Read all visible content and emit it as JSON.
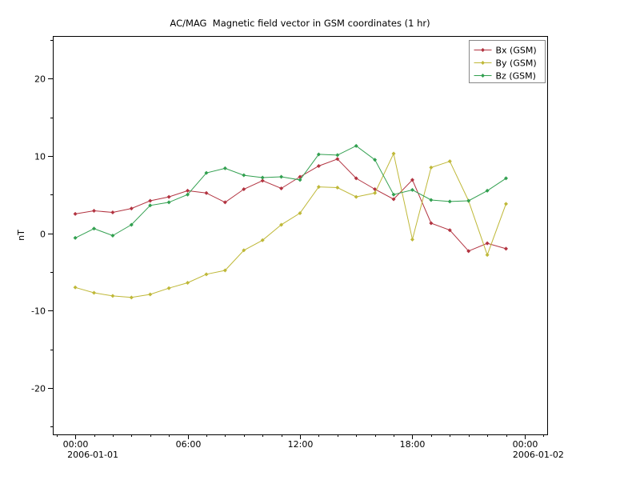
{
  "figure": {
    "background": "#ffffff"
  },
  "chart_data": {
    "type": "line",
    "title": "AC/MAG  Magnetic field vector in GSM coordinates (1 hr)",
    "xlabel": "",
    "ylabel": "nT",
    "x_unit": "hour of 2006-01-01",
    "grid": false,
    "legend_position": "top-right",
    "xlim": [
      -1.2,
      25.2
    ],
    "ylim": [
      -26,
      25.5
    ],
    "x_ticks": [
      0,
      6,
      12,
      18,
      24
    ],
    "x_tick_labels": [
      "00:00",
      "06:00",
      "12:00",
      "18:00",
      "00:00"
    ],
    "x_minor_step": 1,
    "y_ticks": [
      20,
      10,
      0,
      -10,
      -20
    ],
    "y_tick_labels": [
      "20",
      "10",
      "0",
      "-10",
      "-20"
    ],
    "y_minor_step": 5,
    "x_date_labels": [
      {
        "pos": 0,
        "label": "2006-01-01"
      },
      {
        "pos": 24,
        "label": "2006-01-02"
      }
    ],
    "x": [
      0,
      1,
      2,
      3,
      4,
      5,
      6,
      7,
      8,
      9,
      10,
      11,
      12,
      13,
      14,
      15,
      16,
      17,
      18,
      19,
      20,
      21,
      22,
      23
    ],
    "series": [
      {
        "id": "bx",
        "name": "Bx (GSM)",
        "color": "#b23340",
        "marker": "diamond",
        "values": [
          2.5,
          2.9,
          2.7,
          3.2,
          4.2,
          4.7,
          5.5,
          5.2,
          4.0,
          5.7,
          6.8,
          5.8,
          7.3,
          8.7,
          9.6,
          7.1,
          5.7,
          4.4,
          6.9,
          1.3,
          0.4,
          -2.3,
          -1.3,
          -2.0
        ]
      },
      {
        "id": "by",
        "name": "By (GSM)",
        "color": "#bfb838",
        "marker": "diamond",
        "values": [
          -7.0,
          -7.7,
          -8.1,
          -8.3,
          -7.9,
          -7.1,
          -6.4,
          -5.3,
          -4.8,
          -2.2,
          -0.9,
          1.1,
          2.6,
          6.0,
          5.9,
          4.7,
          5.2,
          10.3,
          -0.8,
          8.5,
          9.3,
          4.2,
          -2.8,
          3.8
        ]
      },
      {
        "id": "bz",
        "name": "Bz (GSM)",
        "color": "#32a050",
        "marker": "diamond",
        "values": [
          -0.6,
          0.6,
          -0.3,
          1.1,
          3.6,
          4.0,
          5.0,
          7.8,
          8.4,
          7.5,
          7.2,
          7.3,
          6.9,
          10.2,
          10.1,
          11.3,
          9.5,
          5.0,
          5.6,
          4.3,
          4.1,
          4.2,
          5.5,
          7.1
        ]
      }
    ]
  }
}
